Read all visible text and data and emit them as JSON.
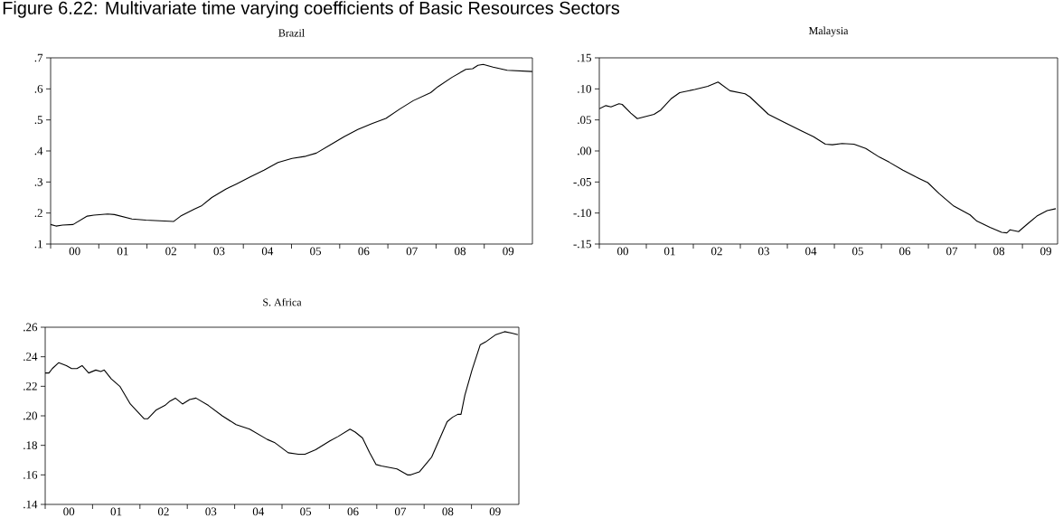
{
  "chart_data": [
    {
      "type": "line",
      "title": "Brazil",
      "annotations": [
        "Figure 6.22: Multivariate time varying coefficients of Basic Resources Sectors"
      ],
      "xlim": [
        "2000-01-01",
        "2010-01-01"
      ],
      "ylim": [
        0.1,
        0.7
      ],
      "xticks": [
        {
          "value": "2000-01-01",
          "label": null
        },
        {
          "value": "2001-01-01",
          "label": null
        },
        {
          "value": "2002-01-01",
          "label": null
        },
        {
          "value": "2003-01-01",
          "label": null
        },
        {
          "value": "2004-01-01",
          "label": null
        },
        {
          "value": "2005-01-01",
          "label": null
        },
        {
          "value": "2006-01-01",
          "label": null
        },
        {
          "value": "2007-01-01",
          "label": null
        },
        {
          "value": "2008-01-01",
          "label": null
        },
        {
          "value": "2009-01-01",
          "label": null
        },
        {
          "value": "2000-07-02",
          "label": "00"
        },
        {
          "value": "2001-07-02",
          "label": "01"
        },
        {
          "value": "2002-07-02",
          "label": "02"
        },
        {
          "value": "2003-07-02",
          "label": "03"
        },
        {
          "value": "2004-07-02",
          "label": "04"
        },
        {
          "value": "2005-07-02",
          "label": "05"
        },
        {
          "value": "2006-07-02",
          "label": "06"
        },
        {
          "value": "2007-07-02",
          "label": "07"
        },
        {
          "value": "2008-07-02",
          "label": "08"
        },
        {
          "value": "2009-07-02",
          "label": "09"
        }
      ],
      "yticks": [
        {
          "value": 0.1,
          "label": ".1"
        },
        {
          "value": 0.2,
          "label": ".2"
        },
        {
          "value": 0.3,
          "label": ".3"
        },
        {
          "value": 0.4,
          "label": ".4"
        },
        {
          "value": 0.5,
          "label": ".5"
        },
        {
          "value": 0.6,
          "label": ".6"
        },
        {
          "value": 0.7,
          "label": ".7"
        }
      ],
      "x": [
        "2000-01-01",
        "2000-02-11",
        "2000-04-01",
        "2000-06-20",
        "2000-10-05",
        "2000-11-25",
        "2001-03-09",
        "2001-04-30",
        "2001-09-09",
        "2001-12-24",
        "2002-04-08",
        "2002-07-23",
        "2002-09-13",
        "2002-12-27",
        "2003-02-21",
        "2003-05-07",
        "2003-08-21",
        "2003-11-11",
        "2004-02-25",
        "2004-06-06",
        "2004-09-20",
        "2005-01-05",
        "2005-04-19",
        "2005-07-08",
        "2005-10-19",
        "2006-02-03",
        "2006-05-18",
        "2006-09-02",
        "2006-12-17",
        "2007-04-01",
        "2007-07-12",
        "2007-11-21",
        "2008-01-15",
        "2008-04-30",
        "2008-08-14",
        "2008-10-05",
        "2008-11-14",
        "2008-12-24",
        "2009-03-09",
        "2009-06-24",
        "2009-12-31"
      ],
      "series": [
        {
          "color": "#000000",
          "values": [
            0.163,
            0.158,
            0.161,
            0.163,
            0.19,
            0.193,
            0.197,
            0.195,
            0.181,
            0.177,
            0.175,
            0.173,
            0.19,
            0.213,
            0.224,
            0.25,
            0.277,
            0.294,
            0.317,
            0.338,
            0.363,
            0.376,
            0.383,
            0.393,
            0.419,
            0.446,
            0.469,
            0.488,
            0.505,
            0.535,
            0.562,
            0.588,
            0.607,
            0.637,
            0.663,
            0.665,
            0.676,
            0.679,
            0.67,
            0.66,
            0.656
          ]
        }
      ]
    },
    {
      "type": "line",
      "title": "Malaysia",
      "xlim": [
        "2000-01-01",
        "2009-10-01"
      ],
      "ylim": [
        -0.15,
        0.15
      ],
      "xticks": [
        {
          "value": "2000-01-01",
          "label": null
        },
        {
          "value": "2001-01-01",
          "label": null
        },
        {
          "value": "2002-01-01",
          "label": null
        },
        {
          "value": "2003-01-01",
          "label": null
        },
        {
          "value": "2004-01-01",
          "label": null
        },
        {
          "value": "2005-01-01",
          "label": null
        },
        {
          "value": "2006-01-01",
          "label": null
        },
        {
          "value": "2007-01-01",
          "label": null
        },
        {
          "value": "2008-01-01",
          "label": null
        },
        {
          "value": "2009-01-01",
          "label": null
        },
        {
          "value": "2000-07-02",
          "label": "00"
        },
        {
          "value": "2001-07-02",
          "label": "01"
        },
        {
          "value": "2002-07-02",
          "label": "02"
        },
        {
          "value": "2003-07-02",
          "label": "03"
        },
        {
          "value": "2004-07-02",
          "label": "04"
        },
        {
          "value": "2005-07-02",
          "label": "05"
        },
        {
          "value": "2006-07-02",
          "label": "06"
        },
        {
          "value": "2007-07-02",
          "label": "07"
        },
        {
          "value": "2008-07-02",
          "label": "08"
        },
        {
          "value": "2009-07-02",
          "label": "09"
        }
      ],
      "yticks": [
        {
          "value": -0.15,
          "label": "-.15"
        },
        {
          "value": -0.1,
          "label": "-.10"
        },
        {
          "value": -0.05,
          "label": "-.05"
        },
        {
          "value": 0,
          "label": ".00"
        },
        {
          "value": 0.05,
          "label": ".05"
        },
        {
          "value": 0.1,
          "label": ".10"
        },
        {
          "value": 0.15,
          "label": ".15"
        }
      ],
      "x": [
        "2000-01-01",
        "2000-02-21",
        "2000-04-01",
        "2000-06-02",
        "2000-06-27",
        "2000-09-02",
        "2000-10-23",
        "2000-12-17",
        "2001-03-02",
        "2001-04-23",
        "2001-07-12",
        "2001-09-17",
        "2002-01-12",
        "2002-04-23",
        "2002-07-12",
        "2002-10-12",
        "2003-02-07",
        "2003-03-17",
        "2003-08-07",
        "2003-12-17",
        "2004-04-23",
        "2004-07-23",
        "2004-10-23",
        "2004-12-17",
        "2005-03-02",
        "2005-06-02",
        "2005-09-02",
        "2005-12-17",
        "2006-03-02",
        "2006-06-17",
        "2006-09-27",
        "2006-12-27",
        "2007-03-27",
        "2007-07-12",
        "2007-11-21",
        "2008-01-12",
        "2008-04-23",
        "2008-07-23",
        "2008-09-02",
        "2008-09-27",
        "2008-12-02",
        "2009-02-07",
        "2009-04-23",
        "2009-07-12",
        "2009-09-17"
      ],
      "series": [
        {
          "color": "#000000",
          "values": [
            0.068,
            0.073,
            0.071,
            0.076,
            0.075,
            0.061,
            0.052,
            0.055,
            0.059,
            0.066,
            0.084,
            0.094,
            0.099,
            0.104,
            0.111,
            0.097,
            0.092,
            0.087,
            0.059,
            0.045,
            0.032,
            0.023,
            0.011,
            0.01,
            0.012,
            0.011,
            0.004,
            -0.01,
            -0.018,
            -0.031,
            -0.042,
            -0.051,
            -0.069,
            -0.088,
            -0.103,
            -0.113,
            -0.123,
            -0.131,
            -0.132,
            -0.127,
            -0.13,
            -0.118,
            -0.105,
            -0.096,
            -0.093
          ]
        }
      ]
    },
    {
      "type": "line",
      "title": "S. Africa",
      "xlim": [
        "2000-01-01",
        "2010-01-01"
      ],
      "ylim": [
        0.14,
        0.26
      ],
      "xticks": [
        {
          "value": "2000-01-01",
          "label": null
        },
        {
          "value": "2001-01-01",
          "label": null
        },
        {
          "value": "2002-01-01",
          "label": null
        },
        {
          "value": "2003-01-01",
          "label": null
        },
        {
          "value": "2004-01-01",
          "label": null
        },
        {
          "value": "2005-01-01",
          "label": null
        },
        {
          "value": "2006-01-01",
          "label": null
        },
        {
          "value": "2007-01-01",
          "label": null
        },
        {
          "value": "2008-01-01",
          "label": null
        },
        {
          "value": "2009-01-01",
          "label": null
        },
        {
          "value": "2000-07-02",
          "label": "00"
        },
        {
          "value": "2001-07-02",
          "label": "01"
        },
        {
          "value": "2002-07-02",
          "label": "02"
        },
        {
          "value": "2003-07-02",
          "label": "03"
        },
        {
          "value": "2004-07-02",
          "label": "04"
        },
        {
          "value": "2005-07-02",
          "label": "05"
        },
        {
          "value": "2006-07-02",
          "label": "06"
        },
        {
          "value": "2007-07-02",
          "label": "07"
        },
        {
          "value": "2008-07-02",
          "label": "08"
        },
        {
          "value": "2009-07-02",
          "label": "09"
        }
      ],
      "yticks": [
        {
          "value": 0.14,
          "label": ".14"
        },
        {
          "value": 0.16,
          "label": ".16"
        },
        {
          "value": 0.18,
          "label": ".18"
        },
        {
          "value": 0.2,
          "label": ".20"
        },
        {
          "value": 0.22,
          "label": ".22"
        },
        {
          "value": 0.24,
          "label": ".24"
        },
        {
          "value": 0.26,
          "label": ".26"
        }
      ],
      "x": [
        "2000-01-01",
        "2000-01-30",
        "2000-02-25",
        "2000-04-15",
        "2000-06-13",
        "2000-07-23",
        "2000-09-02",
        "2000-10-12",
        "2000-12-02",
        "2001-01-26",
        "2001-03-06",
        "2001-04-01",
        "2001-05-25",
        "2001-07-30",
        "2001-10-19",
        "2002-02-03",
        "2002-03-02",
        "2002-05-07",
        "2002-07-12",
        "2002-08-21",
        "2002-10-01",
        "2002-11-25",
        "2003-01-19",
        "2003-03-09",
        "2003-06-13",
        "2003-09-27",
        "2004-01-12",
        "2004-04-26",
        "2004-09-09",
        "2004-11-03",
        "2005-02-18",
        "2005-05-07",
        "2005-06-27",
        "2005-09-17",
        "2006-01-05",
        "2006-03-09",
        "2006-06-09",
        "2006-07-19",
        "2006-09-13",
        "2006-11-07",
        "2006-12-27",
        "2007-02-07",
        "2007-06-06",
        "2007-08-25",
        "2007-09-20",
        "2007-11-25",
        "2008-02-28",
        "2008-06-27",
        "2008-08-07",
        "2008-09-17",
        "2008-10-12",
        "2008-11-11",
        "2009-01-05",
        "2009-03-09",
        "2009-04-19",
        "2009-07-08",
        "2009-09-13",
        "2009-11-07",
        "2009-12-24"
      ],
      "series": [
        {
          "color": "#000000",
          "values": [
            0.229,
            0.229,
            0.232,
            0.236,
            0.234,
            0.232,
            0.232,
            0.234,
            0.229,
            0.231,
            0.23,
            0.231,
            0.225,
            0.22,
            0.208,
            0.198,
            0.198,
            0.204,
            0.207,
            0.21,
            0.212,
            0.208,
            0.211,
            0.212,
            0.207,
            0.2,
            0.194,
            0.191,
            0.184,
            0.182,
            0.175,
            0.174,
            0.174,
            0.177,
            0.183,
            0.186,
            0.191,
            0.189,
            0.185,
            0.175,
            0.167,
            0.166,
            0.164,
            0.16,
            0.16,
            0.162,
            0.172,
            0.196,
            0.199,
            0.201,
            0.201,
            0.214,
            0.231,
            0.248,
            0.25,
            0.255,
            0.257,
            0.256,
            0.255
          ]
        }
      ]
    }
  ]
}
